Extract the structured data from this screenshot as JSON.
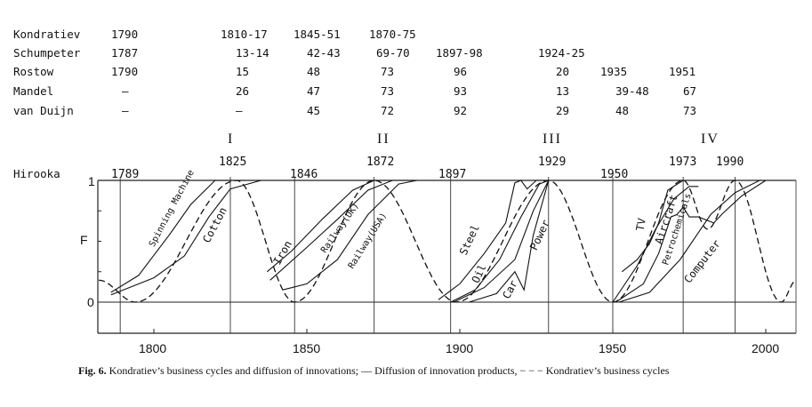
{
  "table": {
    "rows": [
      {
        "name": "Kondratiev",
        "cells": [
          "1790",
          "1810-17",
          "1845-51",
          "1870-75",
          "",
          "",
          "",
          ""
        ]
      },
      {
        "name": "Schumpeter",
        "cells": [
          "1787",
          "13-14",
          "42-43",
          "69-70",
          "1897-98",
          "1924-25",
          "",
          ""
        ]
      },
      {
        "name": "Rostow",
        "cells": [
          "1790",
          "15",
          "48",
          "73",
          "96",
          "20",
          "1935",
          "1951"
        ]
      },
      {
        "name": "Mandel",
        "cells": [
          "—",
          "26",
          "47",
          "73",
          "93",
          "13",
          "39-48",
          "67"
        ]
      },
      {
        "name": "van Duijn",
        "cells": [
          "—",
          "—",
          "45",
          "72",
          "92",
          "29",
          "48",
          "73"
        ]
      }
    ]
  },
  "chart_data": {
    "type": "line",
    "ylabel": "F",
    "yticks": [
      "0",
      "1"
    ],
    "ylim": [
      0,
      1
    ],
    "xlim": [
      1782,
      2010
    ],
    "xticks": [
      "1800",
      "1850",
      "1900",
      "1950",
      "2000"
    ],
    "row_label": "Hirooka",
    "cycles": [
      "I",
      "II",
      "III",
      "IV"
    ],
    "peak_years": [
      "1825",
      "1872",
      "1929",
      "1973",
      "1990"
    ],
    "trough_years": [
      "1789",
      "1846",
      "1897",
      "1950"
    ],
    "kondratiev_cycle": [
      [
        1782,
        0.18
      ],
      [
        1794,
        0
      ],
      [
        1827,
        1
      ],
      [
        1846,
        0
      ],
      [
        1872,
        1
      ],
      [
        1899,
        0
      ],
      [
        1929,
        1
      ],
      [
        1950,
        0
      ],
      [
        1973,
        1
      ],
      [
        1981,
        0.6
      ],
      [
        1990,
        1
      ],
      [
        2005,
        0
      ],
      [
        2010,
        0.18
      ]
    ],
    "series": [
      {
        "name": "Spinning Machine",
        "points": [
          [
            1786,
            0.08
          ],
          [
            1795,
            0.22
          ],
          [
            1805,
            0.55
          ],
          [
            1812,
            0.8
          ],
          [
            1820,
            1
          ],
          [
            1830,
            1
          ]
        ]
      },
      {
        "name": "Cotton",
        "points": [
          [
            1786,
            0.06
          ],
          [
            1800,
            0.2
          ],
          [
            1810,
            0.38
          ],
          [
            1818,
            0.7
          ],
          [
            1825,
            0.93
          ],
          [
            1835,
            1
          ]
        ]
      },
      {
        "name": "Iron",
        "points": [
          [
            1837,
            0.25
          ],
          [
            1845,
            0.42
          ],
          [
            1855,
            0.68
          ],
          [
            1865,
            0.92
          ],
          [
            1872,
            1
          ],
          [
            1880,
            1
          ]
        ]
      },
      {
        "name": "Railway(UK)",
        "points": [
          [
            1838,
            0.18
          ],
          [
            1850,
            0.45
          ],
          [
            1860,
            0.68
          ],
          [
            1870,
            0.92
          ],
          [
            1878,
            1
          ],
          [
            1885,
            1
          ]
        ]
      },
      {
        "name": "Railway(USA)",
        "points": [
          [
            1842,
            0.1
          ],
          [
            1850,
            0.15
          ],
          [
            1860,
            0.35
          ],
          [
            1870,
            0.72
          ],
          [
            1880,
            0.97
          ],
          [
            1886,
            1
          ]
        ]
      },
      {
        "name": "Steel",
        "points": [
          [
            1893,
            0.02
          ],
          [
            1900,
            0.15
          ],
          [
            1908,
            0.4
          ],
          [
            1915,
            0.65
          ],
          [
            1918,
            0.98
          ],
          [
            1920,
            1
          ],
          [
            1922,
            0.93
          ],
          [
            1925,
            1
          ],
          [
            1929,
            1
          ]
        ]
      },
      {
        "name": "Oil",
        "points": [
          [
            1897,
            0
          ],
          [
            1905,
            0.1
          ],
          [
            1913,
            0.35
          ],
          [
            1920,
            0.7
          ],
          [
            1926,
            0.97
          ],
          [
            1929,
            1
          ]
        ]
      },
      {
        "name": "Car",
        "points": [
          [
            1903,
            0
          ],
          [
            1912,
            0.07
          ],
          [
            1918,
            0.25
          ],
          [
            1921,
            0.1
          ],
          [
            1924,
            0.55
          ],
          [
            1929,
            1
          ]
        ]
      },
      {
        "name": "Power",
        "points": [
          [
            1898,
            0
          ],
          [
            1908,
            0.12
          ],
          [
            1918,
            0.35
          ],
          [
            1924,
            0.75
          ],
          [
            1929,
            1
          ]
        ]
      },
      {
        "name": "TV",
        "points": [
          [
            1953,
            0.25
          ],
          [
            1958,
            0.35
          ],
          [
            1962,
            0.48
          ],
          [
            1965,
            0.65
          ],
          [
            1968,
            0.92
          ],
          [
            1973,
            1
          ]
        ]
      },
      {
        "name": "Aircraft",
        "points": [
          [
            1950,
            0
          ],
          [
            1958,
            0.3
          ],
          [
            1964,
            0.6
          ],
          [
            1970,
            0.85
          ],
          [
            1975,
            0.95
          ],
          [
            1978,
            0.95
          ]
        ]
      },
      {
        "name": "Petrochemicals",
        "points": [
          [
            1951,
            0
          ],
          [
            1960,
            0.15
          ],
          [
            1965,
            0.4
          ],
          [
            1969,
            0.7
          ],
          [
            1971,
            0.72
          ],
          [
            1973,
            0.78
          ],
          [
            1975,
            0.7
          ],
          [
            1978,
            0.7
          ],
          [
            1983,
            0.65
          ],
          [
            1986,
            0.73
          ],
          [
            1992,
            0.87
          ],
          [
            2000,
            1
          ]
        ]
      },
      {
        "name": "Computer",
        "points": [
          [
            1952,
            0
          ],
          [
            1962,
            0.08
          ],
          [
            1972,
            0.35
          ],
          [
            1982,
            0.72
          ],
          [
            1990,
            0.9
          ],
          [
            1998,
            1
          ],
          [
            2000,
            1
          ]
        ]
      }
    ]
  },
  "caption": {
    "label": "Fig. 6.",
    "text": " Kondratiev’s business cycles and diffusion of innovations; — Diffusion of innovation products, − − − Kondratiev’s business cycles"
  }
}
